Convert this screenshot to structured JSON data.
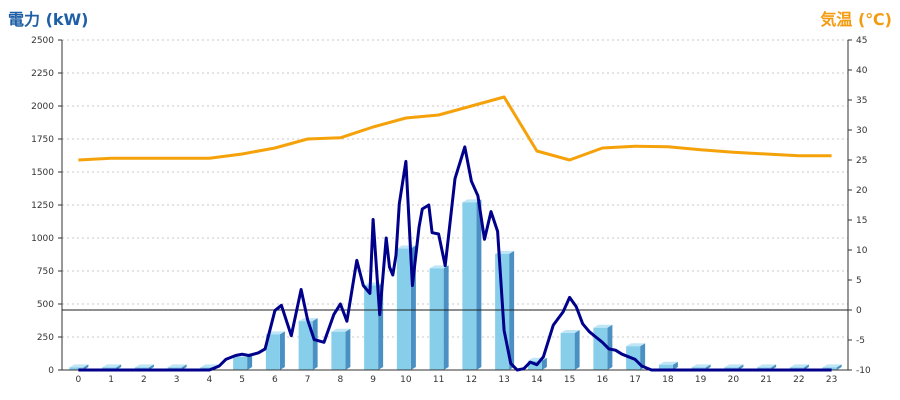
{
  "chart_data": {
    "type": "bar",
    "ylabel_left": "電力 (kW)",
    "ylabel_right": "気温 (℃)",
    "categories": [
      "0",
      "1",
      "2",
      "3",
      "4",
      "5",
      "6",
      "7",
      "8",
      "9",
      "10",
      "11",
      "12",
      "13",
      "14",
      "15",
      "16",
      "17",
      "18",
      "19",
      "20",
      "21",
      "22",
      "23"
    ],
    "ylim_left": [
      0,
      2500
    ],
    "ylim_right": [
      -10,
      45
    ],
    "left_ticks": [
      "0",
      "250",
      "500",
      "750",
      "1000",
      "1250",
      "1500",
      "1750",
      "2000",
      "2250",
      "2500"
    ],
    "right_ticks": [
      "-10",
      "-5",
      "0",
      "5",
      "10",
      "15",
      "20",
      "25",
      "30",
      "35",
      "40",
      "45"
    ],
    "grid": true,
    "series": [
      {
        "kind": "bar",
        "axis": "left",
        "values": [
          20,
          20,
          20,
          20,
          20,
          100,
          270,
          370,
          290,
          640,
          920,
          770,
          1270,
          880,
          70,
          280,
          320,
          180,
          40,
          20,
          20,
          20,
          20,
          20
        ]
      },
      {
        "kind": "line",
        "axis": "left",
        "x": [
          0,
          1,
          2,
          3,
          4,
          4.3,
          4.5,
          4.8,
          5,
          5.2,
          5.5,
          5.7,
          6,
          6.2,
          6.5,
          6.8,
          7,
          7.2,
          7.5,
          7.8,
          8,
          8.2,
          8.5,
          8.7,
          8.9,
          9,
          9.2,
          9.4,
          9.5,
          9.6,
          9.7,
          9.8,
          10,
          10.2,
          10.4,
          10.5,
          10.7,
          10.8,
          11,
          11.2,
          11.5,
          11.8,
          12,
          12.2,
          12.4,
          12.6,
          12.8,
          13,
          13.2,
          13.4,
          13.6,
          13.8,
          14,
          14.2,
          14.5,
          14.8,
          15,
          15.2,
          15.4,
          15.6,
          15.8,
          16,
          16.2,
          16.4,
          16.6,
          16.8,
          17,
          17.2,
          17.5,
          17.8,
          18,
          19,
          20,
          21,
          22,
          23
        ],
        "values": [
          0,
          0,
          0,
          0,
          0,
          30,
          80,
          110,
          120,
          110,
          130,
          160,
          450,
          490,
          260,
          610,
          380,
          230,
          210,
          420,
          500,
          370,
          830,
          640,
          580,
          1140,
          420,
          1000,
          780,
          720,
          870,
          1260,
          1580,
          640,
          1080,
          1220,
          1250,
          1040,
          1030,
          790,
          1450,
          1690,
          1430,
          1320,
          990,
          1200,
          1050,
          300,
          50,
          0,
          10,
          60,
          40,
          100,
          340,
          440,
          550,
          480,
          350,
          290,
          250,
          210,
          160,
          150,
          120,
          100,
          80,
          30,
          0,
          0,
          0,
          0,
          0,
          0,
          0,
          0
        ]
      },
      {
        "kind": "line",
        "axis": "right",
        "x": [
          0,
          1,
          2,
          3,
          4,
          5,
          6,
          7,
          8,
          9,
          10,
          11,
          12,
          13,
          14,
          15,
          16,
          17,
          18,
          19,
          20,
          21,
          22,
          23
        ],
        "values": [
          25,
          25.3,
          25.3,
          25.3,
          25.3,
          26,
          27,
          28.5,
          28.7,
          30.5,
          32,
          32.5,
          34,
          35.5,
          26.5,
          25,
          27,
          27.3,
          27.2,
          26.7,
          26.3,
          26,
          25.7,
          25.7
        ]
      }
    ],
    "colors": {
      "bar_front": "#87ceeb",
      "bar_side": "#4a90c2",
      "bar_top": "#bfe6f7",
      "power_line": "#00008b",
      "temp_line": "#f5a20a",
      "ylabel_left": "#1f5fa6",
      "ylabel_right": "#f39c12"
    }
  }
}
